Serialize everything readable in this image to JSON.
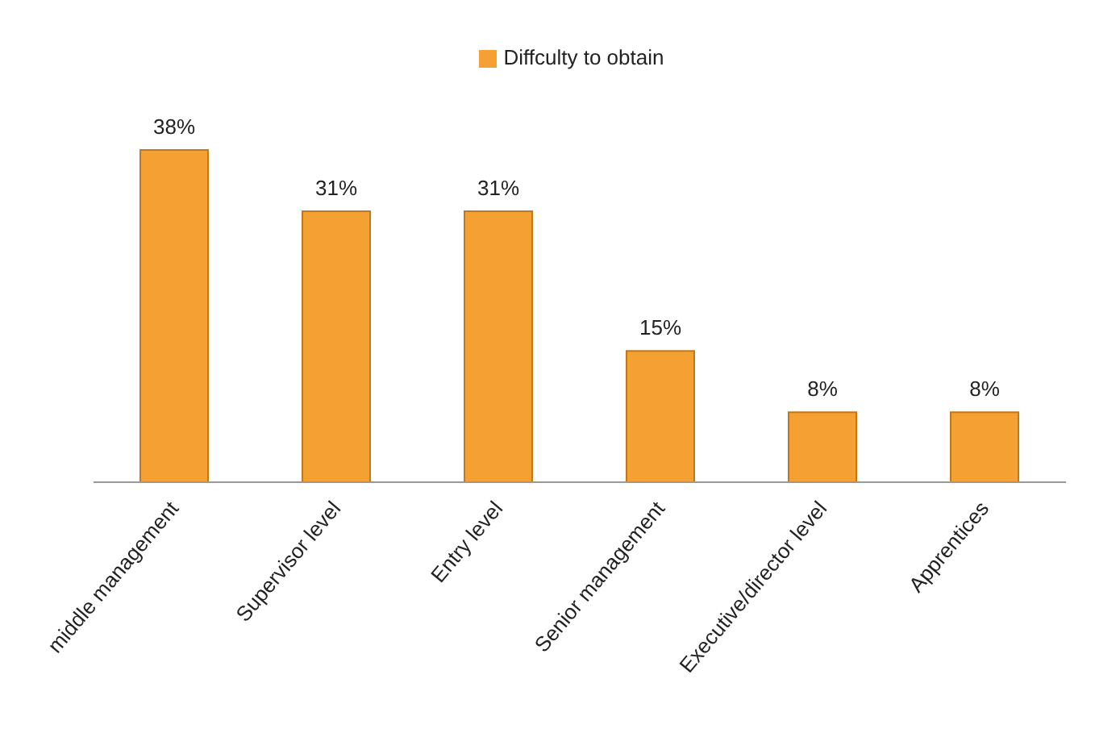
{
  "chart_data": {
    "type": "bar",
    "categories": [
      "middle management",
      "Supervisor level",
      "Entry level",
      "Senior management",
      "Executive/director level",
      "Apprentices"
    ],
    "series": [
      {
        "name": "Diffculty to obtain",
        "color": "#f5a033",
        "values": [
          38,
          31,
          31,
          15,
          8,
          8
        ],
        "value_labels": [
          "38%",
          "31%",
          "31%",
          "15%",
          "8%",
          "8%"
        ]
      }
    ],
    "tick_labels": "x",
    "legend": "top",
    "grid": false
  }
}
